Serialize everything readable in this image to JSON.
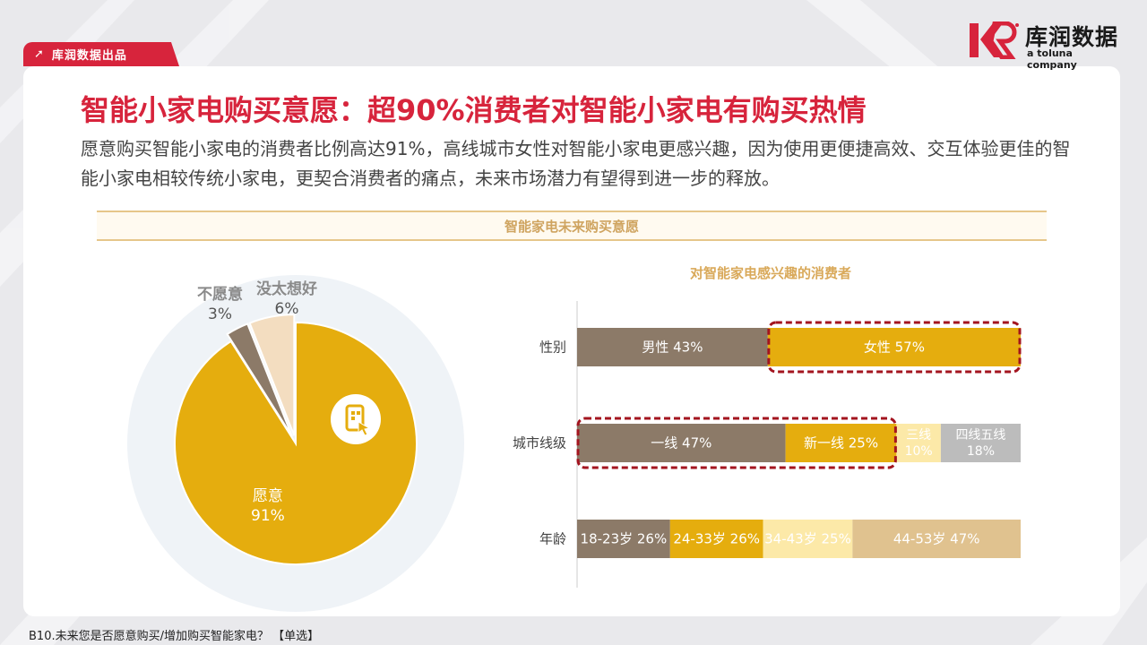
{
  "header": {
    "tag_label": "库润数据出品",
    "brand_name": "库润数据",
    "brand_sub": "a toluna company"
  },
  "title": "智能小家电购买意愿：超90%消费者对智能小家电有购买热情",
  "description": "愿意购买智能小家电的消费者比例高达91%，高线城市女性对智能小家电更感兴趣，因为使用更便捷高效、交互体验更佳的智能小家电相较传统小家电，更契合消费者的痛点，未来市场潜力有望得到进一步的释放。",
  "section_title": "智能家电未来购买意愿",
  "footnote": "B10.未来您是否愿意购买/增加购买智能家电？ 【单选】",
  "colors": {
    "accent_red": "#d7243c",
    "gold": "#e5ad0e",
    "taupe": "#8c7a68",
    "light_yellow": "#fce9a8",
    "tan": "#e0c28f",
    "gray": "#bcbcbc",
    "cream": "#f3ddc0"
  },
  "chart_data": [
    {
      "type": "pie",
      "slices": [
        {
          "label": "愿意",
          "value": 91,
          "value_label": "91%",
          "color": "#e5ad0e"
        },
        {
          "label": "不愿意",
          "value": 3,
          "value_label": "3%",
          "color": "#8c7a68"
        },
        {
          "label": "没太想好",
          "value": 6,
          "value_label": "6%",
          "color": "#f3ddc0"
        }
      ]
    },
    {
      "type": "bar",
      "orientation": "horizontal-stacked",
      "title": "对智能家电感兴趣的消费者",
      "categories": [
        "性别",
        "城市线级",
        "年龄"
      ],
      "rows": [
        {
          "category": "性别",
          "segments": [
            {
              "label": "男性 43%",
              "value": 43,
              "color": "#8c7a68",
              "text_color": "#ffffff"
            },
            {
              "label": "女性 57%",
              "value": 57,
              "color": "#e5ad0e",
              "text_color": "#ffffff",
              "highlight": true
            }
          ]
        },
        {
          "category": "城市线级",
          "segments": [
            {
              "label": "一线 47%",
              "value": 47,
              "color": "#8c7a68",
              "text_color": "#ffffff",
              "highlight": true
            },
            {
              "label": "新一线 25%",
              "value": 25,
              "color": "#e5ad0e",
              "text_color": "#ffffff",
              "highlight": true
            },
            {
              "label": "三线\n10%",
              "value": 10,
              "color": "#fce9a8",
              "text_color": "#ffffff"
            },
            {
              "label": "四线五线\n18%",
              "value": 18,
              "color": "#bcbcbc",
              "text_color": "#ffffff"
            }
          ]
        },
        {
          "category": "年龄",
          "segments": [
            {
              "label": "18-23岁 26%",
              "value": 26,
              "color": "#8c7a68",
              "text_color": "#ffffff"
            },
            {
              "label": "24-33岁 26%",
              "value": 26,
              "color": "#e5ad0e",
              "text_color": "#ffffff"
            },
            {
              "label": "34-43岁 25%",
              "value": 25,
              "color": "#fce9a8",
              "text_color": "#ffffff"
            },
            {
              "label": "44-53岁 47%",
              "value": 47,
              "color": "#e0c28f",
              "text_color": "#ffffff"
            }
          ]
        }
      ]
    }
  ]
}
